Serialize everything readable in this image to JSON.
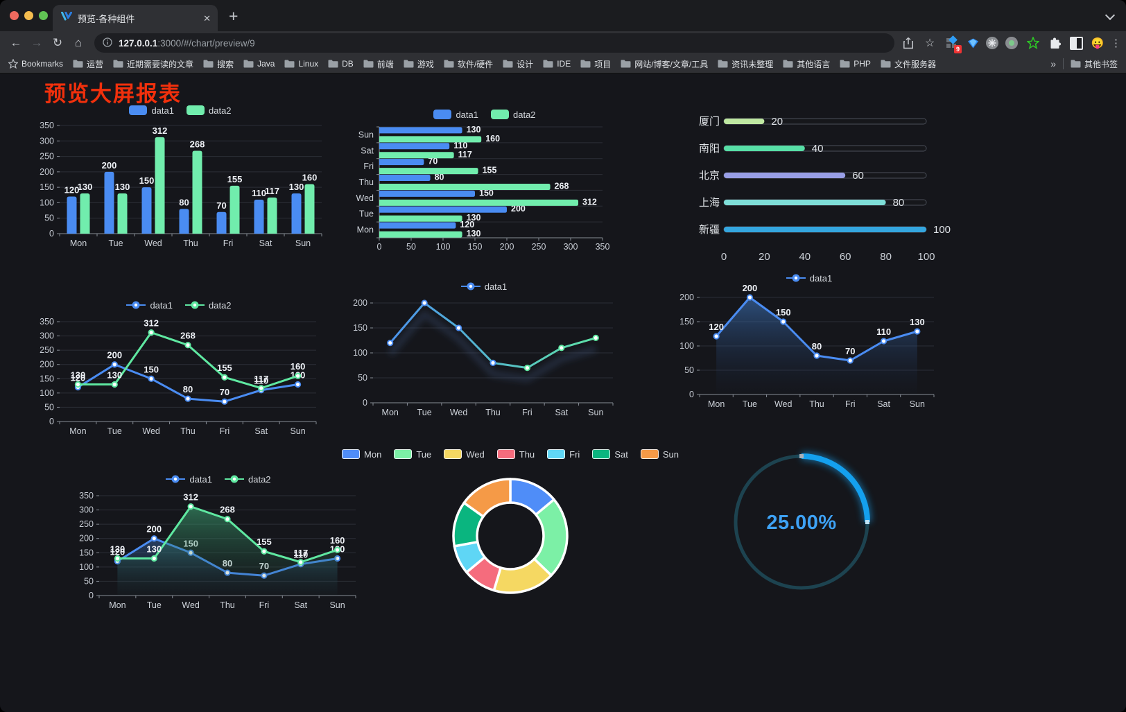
{
  "browser": {
    "traffic_light_colors": [
      "#ee6a5f",
      "#f5bd4f",
      "#61c454"
    ],
    "tab": {
      "title": "预览-各种组件",
      "close_glyph": "✕",
      "new_tab_glyph": "+"
    },
    "nav": {
      "back_glyph": "←",
      "forward_glyph": "→",
      "reload_glyph": "↻",
      "home_glyph": "⌂",
      "menu_glyph": "⋮",
      "bookmark_star_glyph": "☆"
    },
    "url": {
      "host": "127.0.0.1",
      "rest": ":3000/#/chart/preview/9"
    },
    "extensions": {
      "badge": "9",
      "emoji_glyph": "😛"
    },
    "bookmarks": {
      "items": [
        {
          "icon": "star-icon",
          "label": "Bookmarks"
        },
        {
          "icon": "folder-icon",
          "label": "运营"
        },
        {
          "icon": "folder-icon",
          "label": "近期需要读的文章"
        },
        {
          "icon": "folder-icon",
          "label": "搜索"
        },
        {
          "icon": "folder-icon",
          "label": "Java"
        },
        {
          "icon": "folder-icon",
          "label": "Linux"
        },
        {
          "icon": "folder-icon",
          "label": "DB"
        },
        {
          "icon": "folder-icon",
          "label": "前端"
        },
        {
          "icon": "folder-icon",
          "label": "游戏"
        },
        {
          "icon": "folder-icon",
          "label": "软件/硬件"
        },
        {
          "icon": "folder-icon",
          "label": "设计"
        },
        {
          "icon": "folder-icon",
          "label": "IDE"
        },
        {
          "icon": "folder-icon",
          "label": "项目"
        },
        {
          "icon": "folder-icon",
          "label": "网站/博客/文章/工具"
        },
        {
          "icon": "folder-icon",
          "label": "资讯未整理"
        },
        {
          "icon": "folder-icon",
          "label": "其他语言"
        },
        {
          "icon": "folder-icon",
          "label": "PHP"
        },
        {
          "icon": "folder-icon",
          "label": "文件服务器"
        }
      ],
      "overflow_glyph": "»",
      "other": {
        "icon": "folder-icon",
        "label": "其他书签"
      }
    }
  },
  "page": {
    "title": "预览大屏报表",
    "title_color": "#f2300c",
    "background": "#15161b"
  },
  "chart_data": [
    {
      "id": "bar-vertical",
      "type": "bar",
      "categories": [
        "Mon",
        "Tue",
        "Wed",
        "Thu",
        "Fri",
        "Sat",
        "Sun"
      ],
      "series": [
        {
          "name": "data1",
          "color": "#4a8cf2",
          "values": [
            120,
            200,
            150,
            80,
            70,
            110,
            130
          ]
        },
        {
          "name": "data2",
          "color": "#71edad",
          "values": [
            130,
            130,
            312,
            268,
            155,
            117,
            160
          ]
        }
      ],
      "ylim": [
        0,
        350
      ],
      "ytick": 50,
      "grid": true,
      "legend_position": "top"
    },
    {
      "id": "bar-horizontal",
      "type": "bar-horizontal",
      "categories_top_to_bottom": [
        "Sun",
        "Sat",
        "Fri",
        "Thu",
        "Wed",
        "Tue",
        "Mon"
      ],
      "series": [
        {
          "name": "data1",
          "color": "#4a8cf2",
          "values": [
            130,
            110,
            70,
            80,
            150,
            200,
            120
          ]
        },
        {
          "name": "data2",
          "color": "#71edad",
          "values": [
            160,
            117,
            155,
            268,
            312,
            130,
            130
          ]
        }
      ],
      "xlim": [
        0,
        350
      ],
      "xtick": 50,
      "grid": true,
      "legend_position": "top"
    },
    {
      "id": "progress-bars",
      "type": "progress",
      "rows": [
        {
          "label": "厦门",
          "value": 20,
          "color": "#bfe8a2"
        },
        {
          "label": "南阳",
          "value": 40,
          "color": "#57dfa6"
        },
        {
          "label": "北京",
          "value": 60,
          "color": "#989ee6"
        },
        {
          "label": "上海",
          "value": 80,
          "color": "#7eded8"
        },
        {
          "label": "新疆",
          "value": 100,
          "color": "#34a6df"
        }
      ],
      "axis_ticks": [
        0,
        20,
        40,
        60,
        80,
        100
      ],
      "max": 100
    },
    {
      "id": "line-two",
      "type": "line",
      "categories": [
        "Mon",
        "Tue",
        "Wed",
        "Thu",
        "Fri",
        "Sat",
        "Sun"
      ],
      "series": [
        {
          "name": "data1",
          "color": "#4a8cf2",
          "values": [
            120,
            200,
            150,
            80,
            70,
            110,
            130
          ]
        },
        {
          "name": "data2",
          "color": "#5fe8a1",
          "values": [
            130,
            130,
            312,
            268,
            155,
            117,
            160
          ]
        }
      ],
      "ylim": [
        0,
        350
      ],
      "ytick": 50,
      "point_labels": true,
      "legend_position": "top"
    },
    {
      "id": "line-gradient",
      "type": "line",
      "categories": [
        "Mon",
        "Tue",
        "Wed",
        "Thu",
        "Fri",
        "Sat",
        "Sun"
      ],
      "series": [
        {
          "name": "data1",
          "gradient": [
            "#4a8cf2",
            "#5fe8a1"
          ],
          "values": [
            120,
            200,
            150,
            80,
            70,
            110,
            130
          ]
        }
      ],
      "ylim": [
        0,
        200
      ],
      "ytick": 50,
      "point_labels": false,
      "shadow": true,
      "legend_position": "top"
    },
    {
      "id": "area-single",
      "type": "line",
      "categories": [
        "Mon",
        "Tue",
        "Wed",
        "Thu",
        "Fri",
        "Sat",
        "Sun"
      ],
      "series": [
        {
          "name": "data1",
          "color": "#4a8cf2",
          "values": [
            120,
            200,
            150,
            80,
            70,
            110,
            130
          ],
          "area": [
            "rgba(62,118,190,0.60)",
            "rgba(25,40,70,0.03)"
          ]
        }
      ],
      "ylim": [
        0,
        200
      ],
      "ytick": 50,
      "point_labels": true,
      "legend_position": "top"
    },
    {
      "id": "line-area-two",
      "type": "line",
      "categories": [
        "Mon",
        "Tue",
        "Wed",
        "Thu",
        "Fri",
        "Sat",
        "Sun"
      ],
      "series": [
        {
          "name": "data1",
          "color": "#4a8cf2",
          "values": [
            120,
            200,
            150,
            80,
            70,
            110,
            130
          ],
          "area": [
            "rgba(62,118,190,0.45)",
            "rgba(25,40,70,0.04)"
          ]
        },
        {
          "name": "data2",
          "color": "#5fe8a1",
          "values": [
            130,
            130,
            312,
            268,
            155,
            117,
            160
          ],
          "area": [
            "rgba(64,175,122,0.55)",
            "rgba(30,70,55,0.05)"
          ]
        }
      ],
      "ylim": [
        0,
        350
      ],
      "ytick": 50,
      "point_labels": true,
      "legend_position": "top"
    },
    {
      "id": "donut",
      "type": "pie",
      "slices": [
        {
          "label": "Mon",
          "value": 120,
          "color": "#4f8df8"
        },
        {
          "label": "Tue",
          "value": 200,
          "color": "#7cf0a6"
        },
        {
          "label": "Wed",
          "value": 150,
          "color": "#f5d862"
        },
        {
          "label": "Thu",
          "value": 80,
          "color": "#f56c7d"
        },
        {
          "label": "Fri",
          "value": 70,
          "color": "#5fd6f5"
        },
        {
          "label": "Sat",
          "value": 110,
          "color": "#0ab57f"
        },
        {
          "label": "Sun",
          "value": 130,
          "color": "#f59a47"
        }
      ],
      "inner_radius_ratio": 0.585,
      "start_angle": "top",
      "legend_position": "top"
    },
    {
      "id": "gauge",
      "type": "gauge",
      "percent": 25,
      "value_label": "25.00%",
      "arc_color": "#14a0ee",
      "track_color": "#1d4350",
      "text_color": "#3ea2f5"
    }
  ]
}
